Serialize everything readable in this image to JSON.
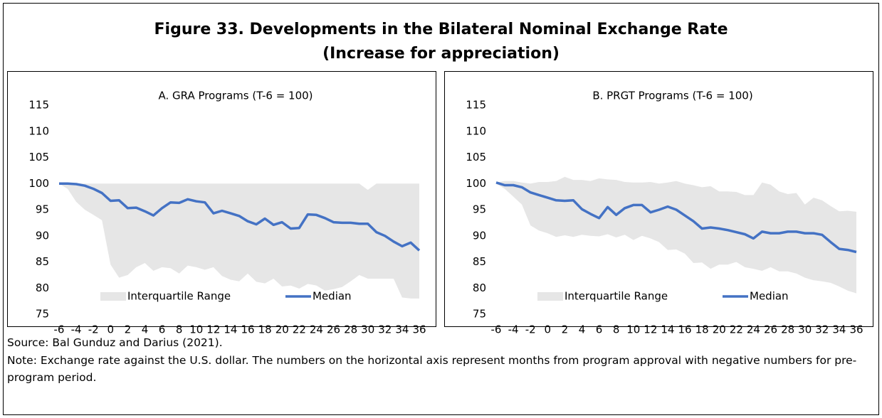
{
  "title": "Figure 33. Developments in the Bilateral Nominal Exchange Rate",
  "subtitle": "(Increase for appreciation)",
  "chart_data": [
    {
      "type": "line",
      "title": "A. GRA Programs (T-6 = 100)",
      "x": [
        -6,
        -5,
        -4,
        -3,
        -2,
        -1,
        0,
        1,
        2,
        3,
        4,
        5,
        6,
        7,
        8,
        9,
        10,
        11,
        12,
        13,
        14,
        15,
        16,
        17,
        18,
        19,
        20,
        21,
        22,
        23,
        24,
        25,
        26,
        27,
        28,
        29,
        30,
        31,
        32,
        33,
        34,
        35,
        36
      ],
      "xlim": [
        -6,
        36
      ],
      "xticks": [
        -6,
        -4,
        -2,
        0,
        2,
        4,
        6,
        8,
        10,
        12,
        14,
        16,
        18,
        20,
        22,
        24,
        26,
        28,
        30,
        32,
        34,
        36
      ],
      "ylim": [
        75,
        115
      ],
      "yticks": [
        75,
        80,
        85,
        90,
        95,
        100,
        105,
        110,
        115
      ],
      "legend": "bottom",
      "series": [
        {
          "name": "Interquartile Range",
          "color": "#e6e6e6",
          "high": [
            100,
            100,
            100,
            100,
            100,
            100,
            100,
            100,
            100,
            100,
            100,
            100,
            100,
            100,
            100,
            100,
            100,
            100,
            100,
            100,
            100,
            100,
            100,
            100,
            100,
            100,
            100,
            100,
            100,
            100,
            100,
            100,
            100,
            100,
            100,
            100,
            98.8,
            100,
            100,
            100,
            100,
            100,
            100
          ],
          "low": [
            100,
            99,
            96.5,
            95,
            94,
            93,
            84.5,
            82,
            82.5,
            84,
            84.8,
            83.3,
            84,
            83.8,
            82.8,
            84.3,
            84,
            83.5,
            84,
            82.3,
            81.6,
            81.3,
            82.8,
            81.2,
            80.9,
            81.8,
            80.3,
            80.5,
            79.9,
            80.8,
            80.5,
            79.5,
            79.8,
            80.2,
            81.3,
            82.5,
            81.8,
            81.8,
            81.8,
            81.8,
            78.2,
            78,
            78
          ]
        },
        {
          "name": "Median",
          "color": "#4472c4",
          "values": [
            100,
            100,
            99.9,
            99.6,
            99,
            98.2,
            96.7,
            96.8,
            95.3,
            95.4,
            94.7,
            93.9,
            95.3,
            96.4,
            96.3,
            97,
            96.6,
            96.4,
            94.3,
            94.8,
            94.3,
            93.8,
            92.8,
            92.2,
            93.3,
            92.1,
            92.6,
            91.4,
            91.5,
            94.1,
            94,
            93.4,
            92.6,
            92.5,
            92.5,
            92.3,
            92.3,
            90.7,
            90,
            88.9,
            88,
            88.7,
            87.2
          ]
        }
      ]
    },
    {
      "type": "line",
      "title": "B. PRGT Programs (T-6 = 100)",
      "x": [
        -6,
        -5,
        -4,
        -3,
        -2,
        -1,
        0,
        1,
        2,
        3,
        4,
        5,
        6,
        7,
        8,
        9,
        10,
        11,
        12,
        13,
        14,
        15,
        16,
        17,
        18,
        19,
        20,
        21,
        22,
        23,
        24,
        25,
        26,
        27,
        28,
        29,
        30,
        31,
        32,
        33,
        34,
        35,
        36
      ],
      "xlim": [
        -6,
        36
      ],
      "xticks": [
        -6,
        -4,
        -2,
        0,
        2,
        4,
        6,
        8,
        10,
        12,
        14,
        16,
        18,
        20,
        22,
        24,
        26,
        28,
        30,
        32,
        34,
        36
      ],
      "ylim": [
        75,
        115
      ],
      "yticks": [
        75,
        80,
        85,
        90,
        95,
        100,
        105,
        110,
        115
      ],
      "legend": "bottom",
      "series": [
        {
          "name": "Interquartile Range",
          "color": "#e6e6e6",
          "high": [
            100.2,
            100.5,
            100.5,
            100.2,
            100,
            100.3,
            100.3,
            100.5,
            101.3,
            100.7,
            100.7,
            100.5,
            101,
            100.8,
            100.7,
            100.3,
            100.2,
            100.2,
            100.3,
            100,
            100.2,
            100.5,
            100,
            99.7,
            99.3,
            99.5,
            98.5,
            98.5,
            98.4,
            97.8,
            97.8,
            100.2,
            99.8,
            98.5,
            98,
            98.2,
            96,
            97.3,
            96.8,
            95.7,
            94.7,
            94.8,
            94.6
          ],
          "low": [
            100,
            99,
            97.5,
            96,
            92,
            91,
            90.5,
            89.8,
            90.1,
            89.8,
            90.2,
            90,
            89.9,
            90.3,
            89.7,
            90.2,
            89.2,
            90,
            89.5,
            88.8,
            87.3,
            87.4,
            86.6,
            84.8,
            84.9,
            83.7,
            84.5,
            84.5,
            85,
            84,
            83.7,
            83.3,
            84,
            83.2,
            83.2,
            82.8,
            82,
            81.5,
            81.3,
            81,
            80.3,
            79.5,
            79
          ]
        },
        {
          "name": "Median",
          "color": "#4472c4",
          "values": [
            100.2,
            99.7,
            99.7,
            99.3,
            98.3,
            97.8,
            97.3,
            96.8,
            96.7,
            96.8,
            95.1,
            94.2,
            93.4,
            95.5,
            94,
            95.3,
            95.9,
            95.9,
            94.5,
            95,
            95.6,
            95,
            93.9,
            92.8,
            91.4,
            91.6,
            91.4,
            91.1,
            90.7,
            90.3,
            89.5,
            90.8,
            90.5,
            90.5,
            90.8,
            90.8,
            90.5,
            90.5,
            90.2,
            88.8,
            87.5,
            87.3,
            86.9
          ]
        }
      ]
    }
  ],
  "source": "Source: Bal Gunduz and Darius (2021).",
  "note": "Note: Exchange rate against the U.S. dollar. The numbers on the horizontal axis represent months from program approval with negative numbers for pre-program period."
}
